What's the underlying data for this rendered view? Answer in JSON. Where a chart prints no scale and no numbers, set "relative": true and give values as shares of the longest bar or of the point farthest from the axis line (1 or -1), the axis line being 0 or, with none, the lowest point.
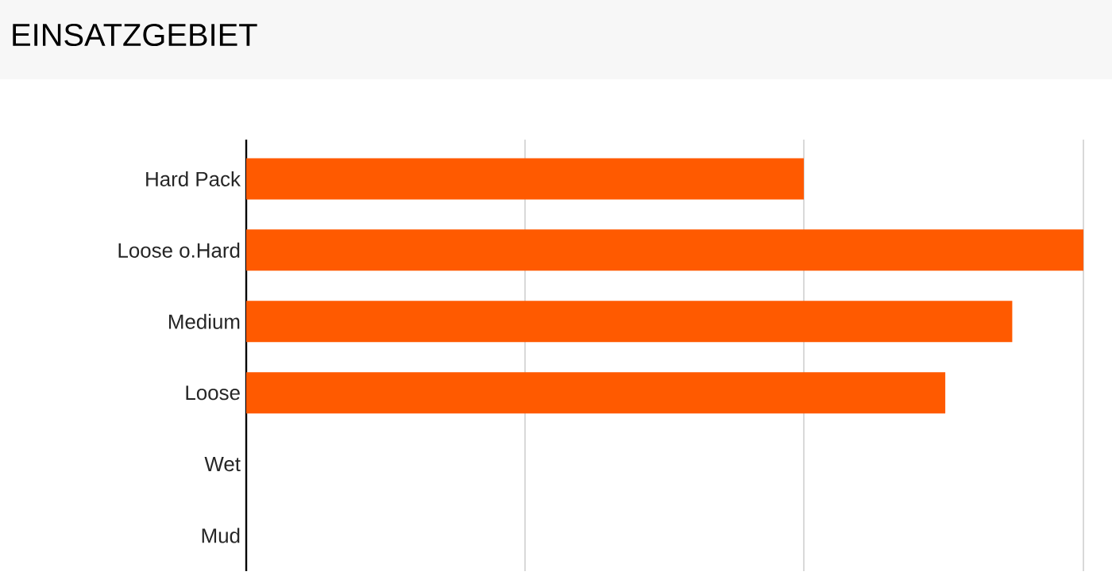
{
  "chart_data": {
    "type": "bar",
    "orientation": "horizontal",
    "relative": true,
    "title": "EINSATZGEBIET",
    "categories": [
      "Hard Pack",
      "Loose o.Hard",
      "Medium",
      "Loose",
      "Wet",
      "Mud"
    ],
    "values": [
      0.666,
      1,
      0.915,
      0.835,
      0,
      0
    ],
    "color": "#ff5a00",
    "ref_lines": [
      {
        "axis": "x",
        "value": 0.333,
        "color": "#d9d9d9"
      },
      {
        "axis": "x",
        "value": 0.666,
        "color": "#d9d9d9"
      },
      {
        "axis": "x",
        "value": 1,
        "color": "#d9d9d9"
      }
    ]
  }
}
